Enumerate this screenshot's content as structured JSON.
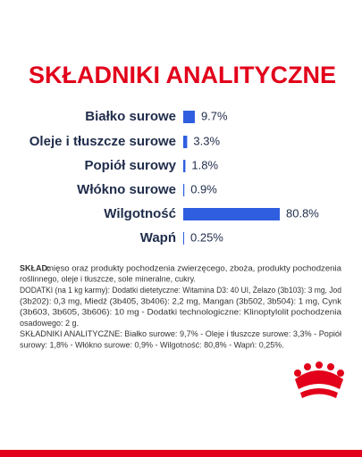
{
  "chart_data": {
    "type": "bar",
    "orientation": "horizontal",
    "title": "SKŁADNIKI ANALITYCZNE",
    "categories": [
      "Białko surowe",
      "Oleje i tłuszcze surowe",
      "Popiół surowy",
      "Włókno surowe",
      "Wilgotność",
      "Wapń"
    ],
    "values": [
      9.7,
      3.3,
      1.8,
      0.9,
      80.8,
      0.25
    ],
    "value_labels": [
      "9.7%",
      "3.3%",
      "1.8%",
      "0.9%",
      "80.8%",
      "0.25%"
    ],
    "color": "#2f5fe0"
  },
  "composition": {
    "label": "SKŁAD:",
    "lines": [
      "mięso oraz produkty pochodzenia zwierzęcego, zboża, produkty pochodzenia",
      "roślinnego, oleje i tłuszcze, sole mineralne, cukry.",
      "DODATKI (na 1 kg karmy): Dodatki dietetyczne: Witamina D3: 40 UI, Żelazo (3b103): 3 mg, Jod",
      "(3b202): 0,3 mg, Miedź (3b405, 3b406): 2,2 mg, Mangan (3b502, 3b504): 1 mg, Cynk",
      "(3b603, 3b605, 3b606): 10 mg - Dodatki technologiczne: Klinoptylolit pochodzenia",
      "osadowego: 2 g.",
      "SKŁADNIKI ANALITYCZNE: Białko surowe: 9,7% - Oleje i tłuszcze surowe: 3,3% - Popiół",
      "surowy: 1,8% - Włókno surowe: 0,9% - Wilgotność: 80,8% - Wapń: 0,25%."
    ]
  }
}
